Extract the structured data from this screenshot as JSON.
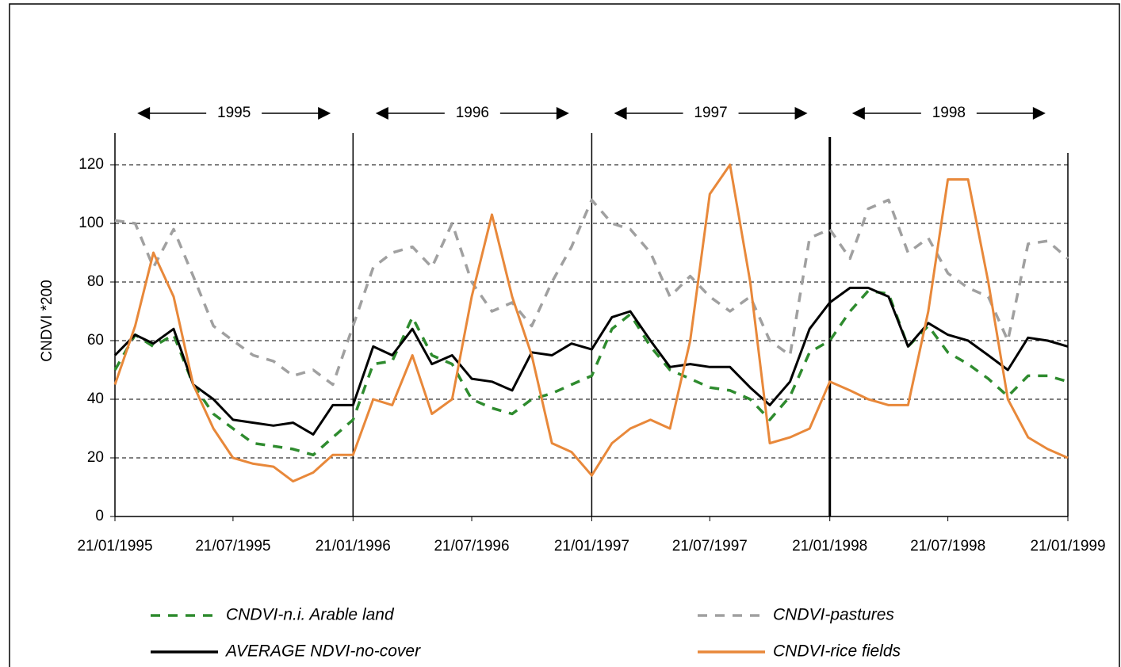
{
  "chart_data": {
    "type": "line",
    "ylabel": "CNDVI *200",
    "annotations": [
      "1995",
      "1996",
      "1997",
      "1998"
    ],
    "x": [
      "21/01/1995",
      "21/02/1995",
      "21/03/1995",
      "21/04/1995",
      "21/05/1995",
      "21/06/1995",
      "21/07/1995",
      "21/08/1995",
      "21/09/1995",
      "21/10/1995",
      "21/11/1995",
      "21/12/1995",
      "21/01/1996",
      "21/02/1996",
      "21/03/1996",
      "21/04/1996",
      "21/05/1996",
      "21/06/1996",
      "21/07/1996",
      "21/08/1996",
      "21/09/1996",
      "21/10/1996",
      "21/11/1996",
      "21/12/1996",
      "21/01/1997",
      "21/02/1997",
      "21/03/1997",
      "21/04/1997",
      "21/05/1997",
      "21/06/1997",
      "21/07/1997",
      "21/08/1997",
      "21/09/1997",
      "21/10/1997",
      "21/11/1997",
      "21/12/1997",
      "21/01/1998",
      "21/02/1998",
      "21/03/1998",
      "21/04/1998",
      "21/05/1998",
      "21/06/1998",
      "21/07/1998",
      "21/08/1998",
      "21/09/1998",
      "21/10/1998",
      "21/11/1998",
      "21/12/1998",
      "21/01/1999"
    ],
    "series": [
      {
        "name": "CNDVI-n.i. Arable land",
        "color": "#2e8b2e",
        "style": "dashed",
        "values": [
          50,
          62,
          58,
          62,
          45,
          35,
          30,
          25,
          24,
          23,
          21,
          27,
          33,
          52,
          53,
          68,
          55,
          52,
          40,
          37,
          35,
          40,
          42,
          45,
          48,
          64,
          69,
          58,
          50,
          47,
          44,
          43,
          40,
          33,
          41,
          56,
          60,
          70,
          77,
          76,
          58,
          65,
          56,
          52,
          47,
          41,
          48,
          48,
          46
        ]
      },
      {
        "name": "CNDVI-pastures",
        "color": "#a0a0a0",
        "style": "dashed",
        "values": [
          101,
          100,
          85,
          98,
          82,
          65,
          60,
          55,
          53,
          48,
          50,
          45,
          65,
          85,
          90,
          92,
          85,
          100,
          80,
          70,
          73,
          65,
          80,
          92,
          108,
          100,
          98,
          90,
          75,
          82,
          75,
          70,
          75,
          60,
          55,
          95,
          98,
          88,
          105,
          108,
          90,
          95,
          83,
          78,
          75,
          60,
          93,
          94,
          88
        ]
      },
      {
        "name": "AVERAGE NDVI-no-cover",
        "color": "#000000",
        "style": "solid",
        "values": [
          55,
          62,
          59,
          64,
          45,
          40,
          33,
          32,
          31,
          32,
          28,
          38,
          38,
          58,
          55,
          64,
          52,
          55,
          47,
          46,
          43,
          56,
          55,
          59,
          57,
          68,
          70,
          60,
          51,
          52,
          51,
          51,
          44,
          38,
          46,
          64,
          73,
          78,
          78,
          75,
          58,
          66,
          62,
          60,
          55,
          50,
          61,
          60,
          58
        ]
      },
      {
        "name": "CNDVI-rice fields",
        "color": "#e8883a",
        "style": "solid",
        "values": [
          45,
          65,
          90,
          75,
          45,
          30,
          20,
          18,
          17,
          12,
          15,
          21,
          21,
          40,
          38,
          55,
          35,
          40,
          75,
          103,
          75,
          55,
          25,
          22,
          14,
          25,
          30,
          33,
          30,
          60,
          110,
          120,
          80,
          25,
          27,
          30,
          46,
          43,
          40,
          38,
          38,
          70,
          115,
          115,
          80,
          40,
          27,
          23,
          20
        ]
      }
    ],
    "xlim": [
      "21/01/1995",
      "21/01/1999"
    ],
    "xticks": [
      "21/01/1995",
      "21/07/1995",
      "21/01/1996",
      "21/07/1996",
      "21/01/1997",
      "21/07/1997",
      "21/01/1998",
      "21/07/1998",
      "21/01/1999"
    ],
    "ylim": [
      0,
      120
    ],
    "yticks": [
      0,
      20,
      40,
      60,
      80,
      100,
      120
    ],
    "grid": true
  }
}
